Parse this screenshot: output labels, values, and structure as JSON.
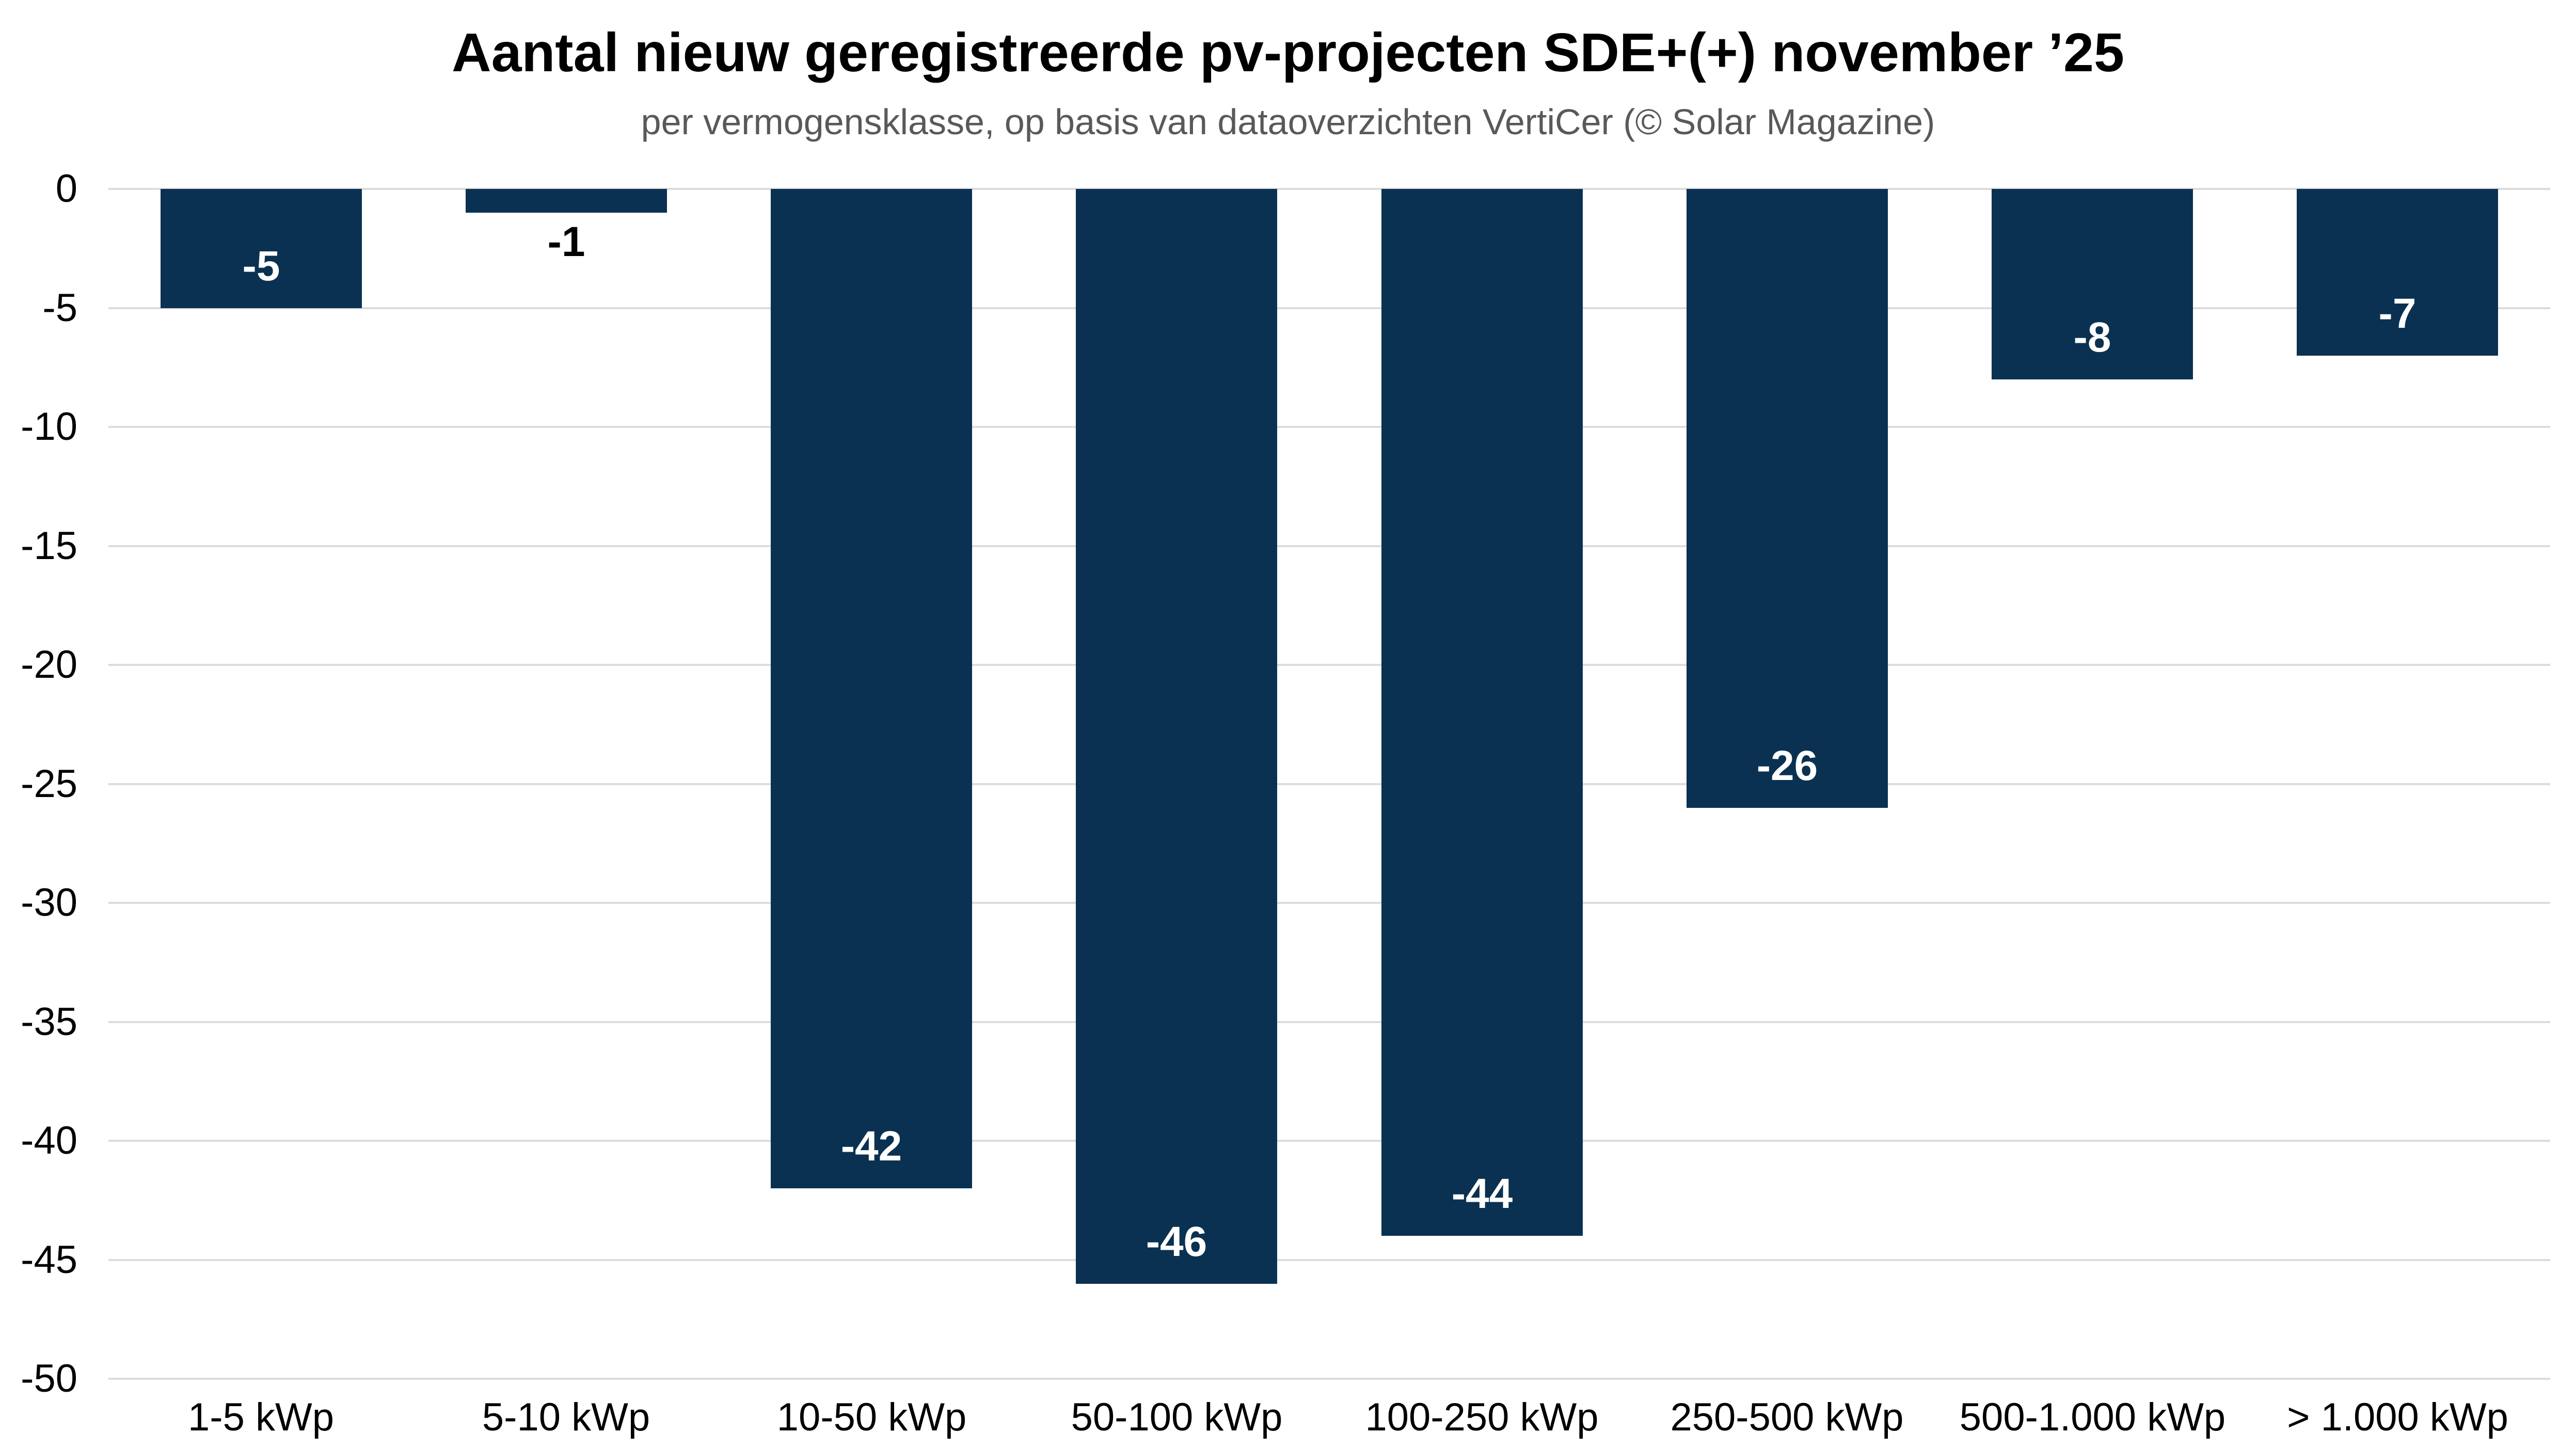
{
  "chart_data": {
    "type": "bar",
    "title": "Aantal nieuw geregistreerde pv-projecten SDE+(+) november ’25",
    "subtitle": "per vermogensklasse, op basis van dataoverzichten VertiCer (© Solar Magazine)",
    "categories": [
      "1-5 kWp",
      "5-10 kWp",
      "10-50 kWp",
      "50-100 kWp",
      "100-250 kWp",
      "250-500 kWp",
      "500-1.000 kWp",
      "> 1.000 kWp"
    ],
    "values": [
      -5,
      -1,
      -42,
      -46,
      -44,
      -26,
      -8,
      -7
    ],
    "value_labels": [
      "-5",
      "-1",
      "-42",
      "-46",
      "-44",
      "-26",
      "-8",
      "-7"
    ],
    "xlabel": "",
    "ylabel": "",
    "ylim": [
      -50,
      0
    ],
    "yticks": [
      "0",
      "-5",
      "-10",
      "-15",
      "-20",
      "-25",
      "-30",
      "-35",
      "-40",
      "-45",
      "-50"
    ],
    "ytick_values": [
      0,
      -5,
      -10,
      -15,
      -20,
      -25,
      -30,
      -35,
      -40,
      -45,
      -50
    ],
    "grid": true,
    "legend": false,
    "colors": {
      "bar": "#0a3151",
      "grid": "#dcdcdc",
      "title": "#000000",
      "subtitle": "#595959",
      "axis_labels": "#000000",
      "value_label_inside": "#ffffff",
      "value_label_outside": "#000000",
      "background": "#ffffff"
    }
  }
}
